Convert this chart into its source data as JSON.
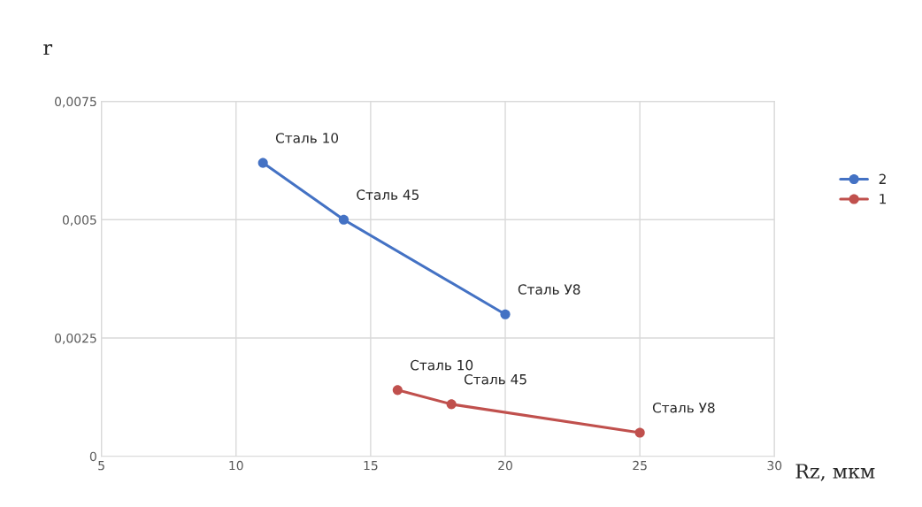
{
  "chart_data": {
    "type": "line",
    "xlabel": "Rz, мкм",
    "ylabel": "r",
    "series": [
      {
        "name": "2",
        "color": "#4472c4",
        "x": [
          11,
          14,
          20
        ],
        "values": [
          0.0062,
          0.005,
          0.003
        ]
      },
      {
        "name": "1",
        "color": "#c0504d",
        "x": [
          16,
          18,
          25
        ],
        "values": [
          0.0014,
          0.0011,
          0.0005
        ]
      }
    ],
    "annotations": [
      {
        "text": "Сталь 10",
        "x": 11,
        "y": 0.0062
      },
      {
        "text": "Сталь 45",
        "x": 14,
        "y": 0.005
      },
      {
        "text": "Сталь У8",
        "x": 20,
        "y": 0.003
      },
      {
        "text": "Сталь 10",
        "x": 16,
        "y": 0.0014
      },
      {
        "text": "Сталь 45",
        "x": 18,
        "y": 0.0011
      },
      {
        "text": "Сталь У8",
        "x": 25,
        "y": 0.0005
      }
    ],
    "xlim": [
      5,
      30
    ],
    "xticks": [
      5,
      10,
      15,
      20,
      25,
      30
    ],
    "ylim": [
      0,
      0.0075
    ],
    "yticks": [
      0,
      {
        "value": 0.0025,
        "label": "0,0025"
      },
      {
        "value": 0.005,
        "label": "0,005"
      },
      {
        "value": 0.0075,
        "label": "0,0075"
      }
    ],
    "grid": true,
    "legend": "right",
    "marker": "circle",
    "line_style": "solid"
  }
}
